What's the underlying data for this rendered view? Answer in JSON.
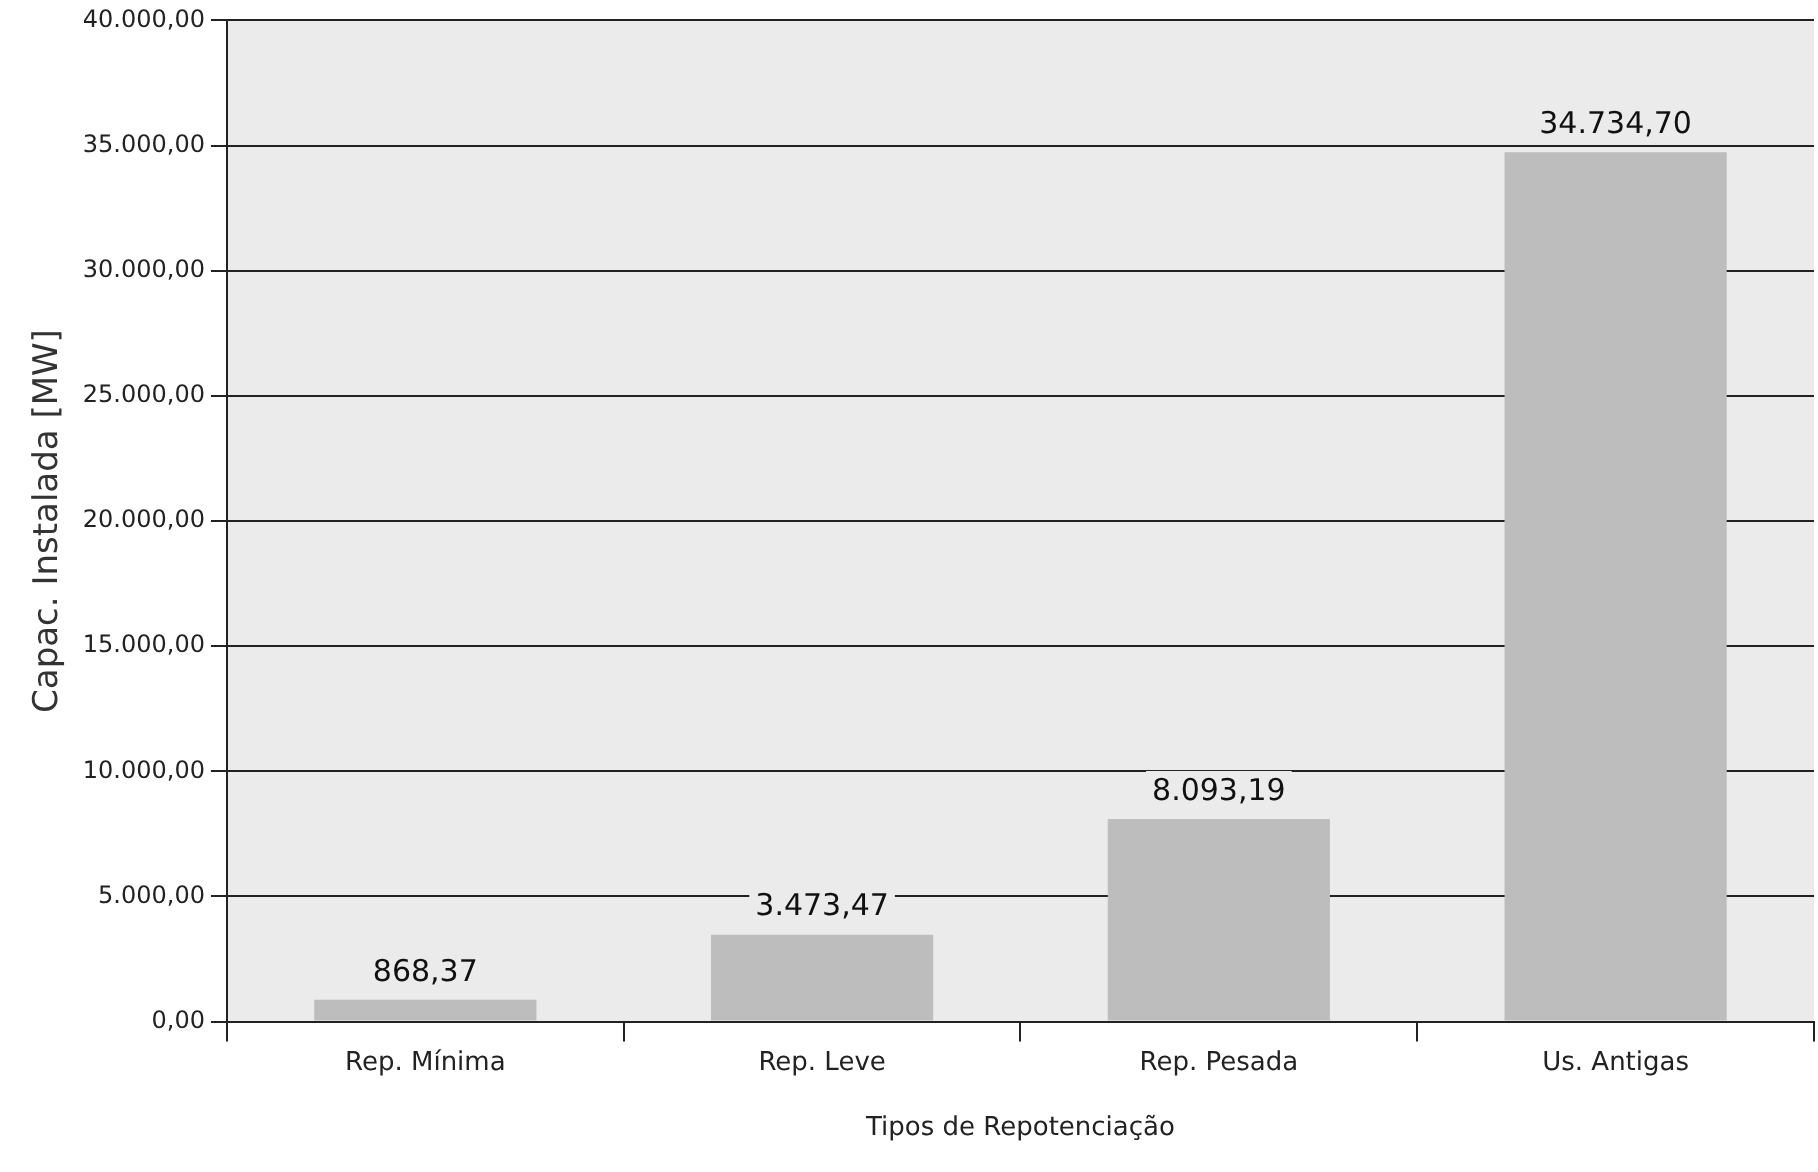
{
  "chart_data": {
    "type": "bar",
    "xlabel": "Tipos de Repotenciação",
    "ylabel": "Capac. Instalada [MW]",
    "categories": [
      "Rep. Mínima",
      "Rep. Leve",
      "Rep. Pesada",
      "Us. Antigas"
    ],
    "values": [
      868.37,
      3473.47,
      8093.19,
      34734.7
    ],
    "value_labels": [
      "868,37",
      "3.473,47",
      "8.093,19",
      "34.734,70"
    ],
    "color": "#bdbdbd",
    "ylim": [
      0,
      40000
    ],
    "yticks": [
      {
        "value": 0,
        "label": "0,00"
      },
      {
        "value": 5000,
        "label": "5.000,00"
      },
      {
        "value": 10000,
        "label": "10.000,00"
      },
      {
        "value": 15000,
        "label": "15.000,00"
      },
      {
        "value": 20000,
        "label": "20.000,00"
      },
      {
        "value": 25000,
        "label": "25.000,00"
      },
      {
        "value": 30000,
        "label": "30.000,00"
      },
      {
        "value": 35000,
        "label": "35.000,00"
      },
      {
        "value": 40000,
        "label": "40.000,00"
      }
    ],
    "grid": "y",
    "legend": false
  }
}
